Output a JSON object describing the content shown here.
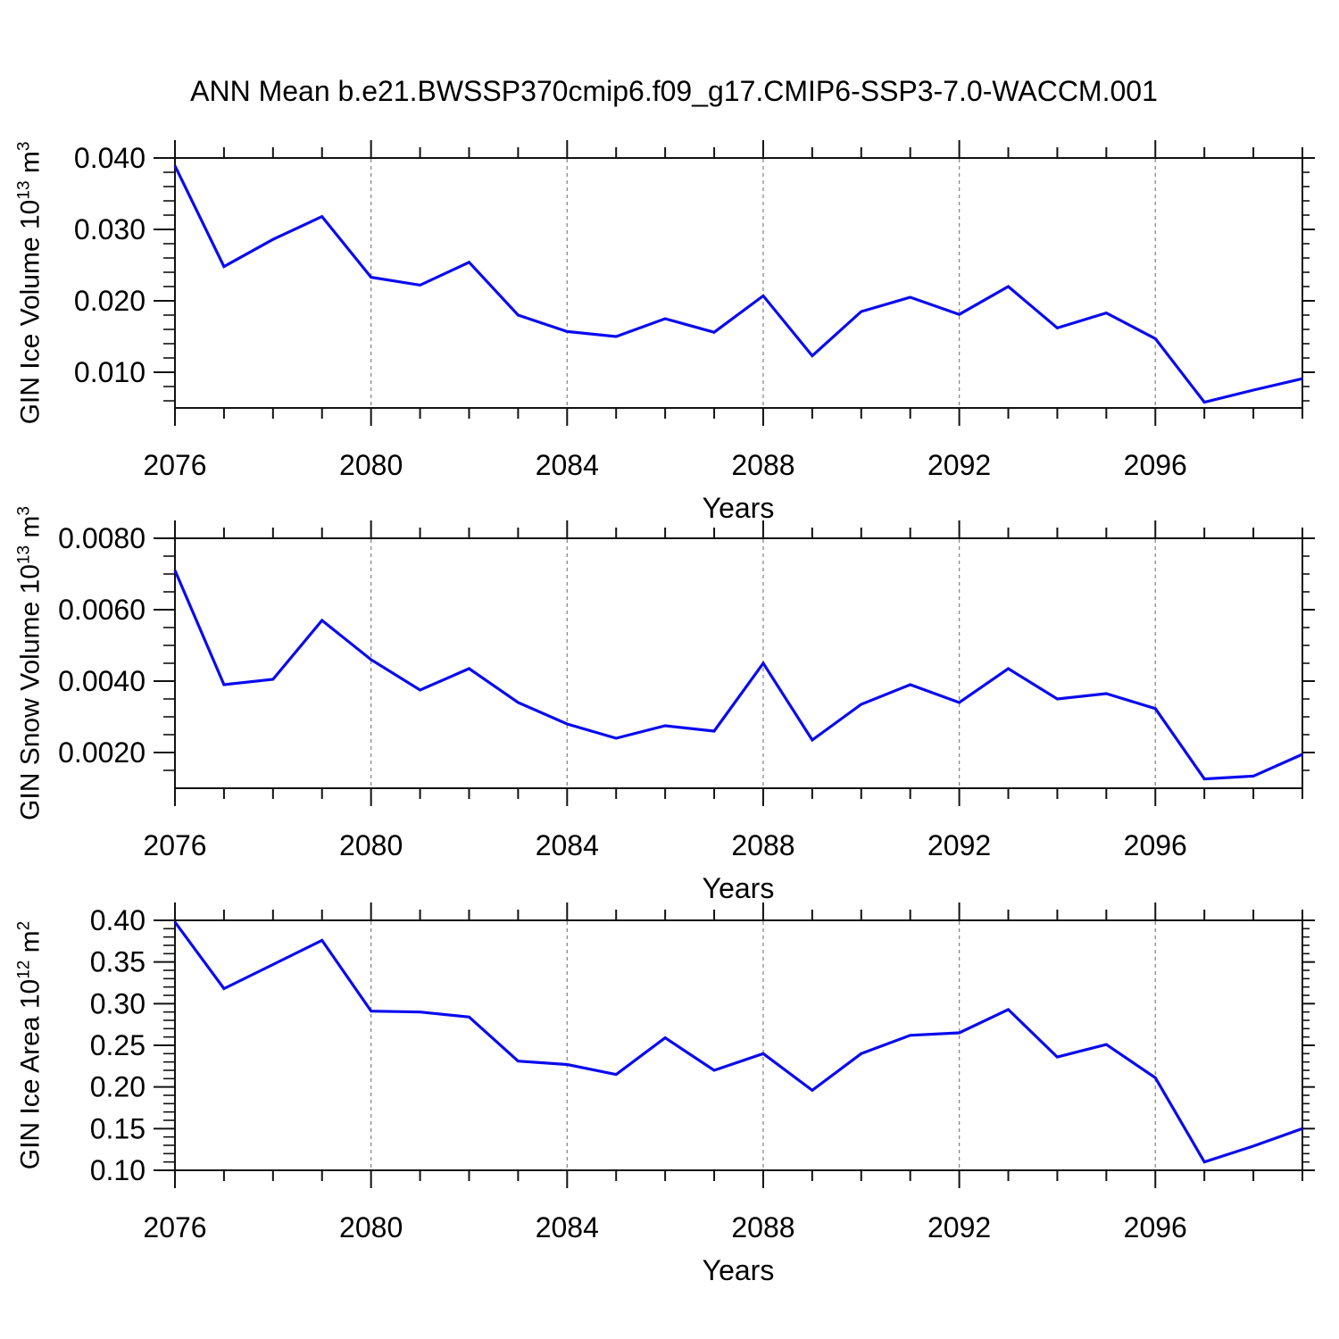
{
  "title": "ANN Mean b.e21.BWSSP370cmip6.f09_g17.CMIP6-SSP3-7.0-WACCM.001",
  "colors": {
    "line": "#0a0af0",
    "grid": "#8a8a8a",
    "frame": "#111111",
    "text": "#000000"
  },
  "x_axis": {
    "min": 2076,
    "max": 2099,
    "major_ticks": [
      2076,
      2080,
      2084,
      2088,
      2092,
      2096
    ],
    "major_labels": [
      "2076",
      "2080",
      "2084",
      "2088",
      "2092",
      "2096"
    ],
    "minor_step": 1,
    "grid_years": [
      2080,
      2084,
      2088,
      2092,
      2096
    ]
  },
  "chart_data": [
    {
      "type": "line",
      "name": "gin-ice-volume",
      "ylabel": {
        "text": "GIN Ice Volume 10",
        "exp": "13",
        "unit": " m",
        "unit_exp": "3"
      },
      "xlabel": "Years",
      "ymin": 0.005,
      "ymax": 0.04,
      "yminor_step": 0.002,
      "ymajor": [
        {
          "v": 0.01,
          "label": "0.010"
        },
        {
          "v": 0.02,
          "label": "0.020"
        },
        {
          "v": 0.03,
          "label": "0.030"
        },
        {
          "v": 0.04,
          "label": "0.040"
        }
      ],
      "x": [
        2076,
        2077,
        2078,
        2079,
        2080,
        2081,
        2082,
        2083,
        2084,
        2085,
        2086,
        2087,
        2088,
        2089,
        2090,
        2091,
        2092,
        2093,
        2094,
        2095,
        2096,
        2097,
        2098,
        2099
      ],
      "values": [
        0.0389,
        0.0248,
        0.0286,
        0.0318,
        0.0233,
        0.0222,
        0.0254,
        0.018,
        0.0157,
        0.015,
        0.0175,
        0.0156,
        0.0207,
        0.0123,
        0.0185,
        0.0205,
        0.0181,
        0.022,
        0.0162,
        0.0183,
        0.0147,
        0.0058,
        0.0075,
        0.0091
      ]
    },
    {
      "type": "line",
      "name": "gin-snow-volume",
      "ylabel": {
        "text": "GIN Snow Volume 10",
        "exp": "13",
        "unit": " m",
        "unit_exp": "3"
      },
      "xlabel": "Years",
      "ymin": 0.001,
      "ymax": 0.008,
      "yminor_step": 0.0005,
      "ymajor": [
        {
          "v": 0.002,
          "label": "0.0020"
        },
        {
          "v": 0.004,
          "label": "0.0040"
        },
        {
          "v": 0.006,
          "label": "0.0060"
        },
        {
          "v": 0.008,
          "label": "0.0080"
        }
      ],
      "x": [
        2076,
        2077,
        2078,
        2079,
        2080,
        2081,
        2082,
        2083,
        2084,
        2085,
        2086,
        2087,
        2088,
        2089,
        2090,
        2091,
        2092,
        2093,
        2094,
        2095,
        2096,
        2097,
        2098,
        2099
      ],
      "values": [
        0.0071,
        0.0039,
        0.00405,
        0.0057,
        0.0046,
        0.00375,
        0.00435,
        0.0034,
        0.0028,
        0.0024,
        0.00275,
        0.0026,
        0.0045,
        0.00235,
        0.00335,
        0.0039,
        0.0034,
        0.00435,
        0.0035,
        0.00365,
        0.00323,
        0.00126,
        0.00134,
        0.00195
      ]
    },
    {
      "type": "line",
      "name": "gin-ice-area",
      "ylabel": {
        "text": "GIN Ice Area 10",
        "exp": "12",
        "unit": " m",
        "unit_exp": "2"
      },
      "xlabel": "Years",
      "ymin": 0.1,
      "ymax": 0.4,
      "yminor_step": 0.01,
      "ymajor": [
        {
          "v": 0.1,
          "label": "0.10"
        },
        {
          "v": 0.15,
          "label": "0.15"
        },
        {
          "v": 0.2,
          "label": "0.20"
        },
        {
          "v": 0.25,
          "label": "0.25"
        },
        {
          "v": 0.3,
          "label": "0.30"
        },
        {
          "v": 0.35,
          "label": "0.35"
        },
        {
          "v": 0.4,
          "label": "0.40"
        }
      ],
      "x": [
        2076,
        2077,
        2078,
        2079,
        2080,
        2081,
        2082,
        2083,
        2084,
        2085,
        2086,
        2087,
        2088,
        2089,
        2090,
        2091,
        2092,
        2093,
        2094,
        2095,
        2096,
        2097,
        2098,
        2099
      ],
      "values": [
        0.398,
        0.318,
        0.347,
        0.376,
        0.291,
        0.29,
        0.284,
        0.231,
        0.227,
        0.215,
        0.259,
        0.22,
        0.24,
        0.196,
        0.24,
        0.262,
        0.265,
        0.293,
        0.236,
        0.251,
        0.211,
        0.11,
        0.129,
        0.15
      ]
    }
  ]
}
